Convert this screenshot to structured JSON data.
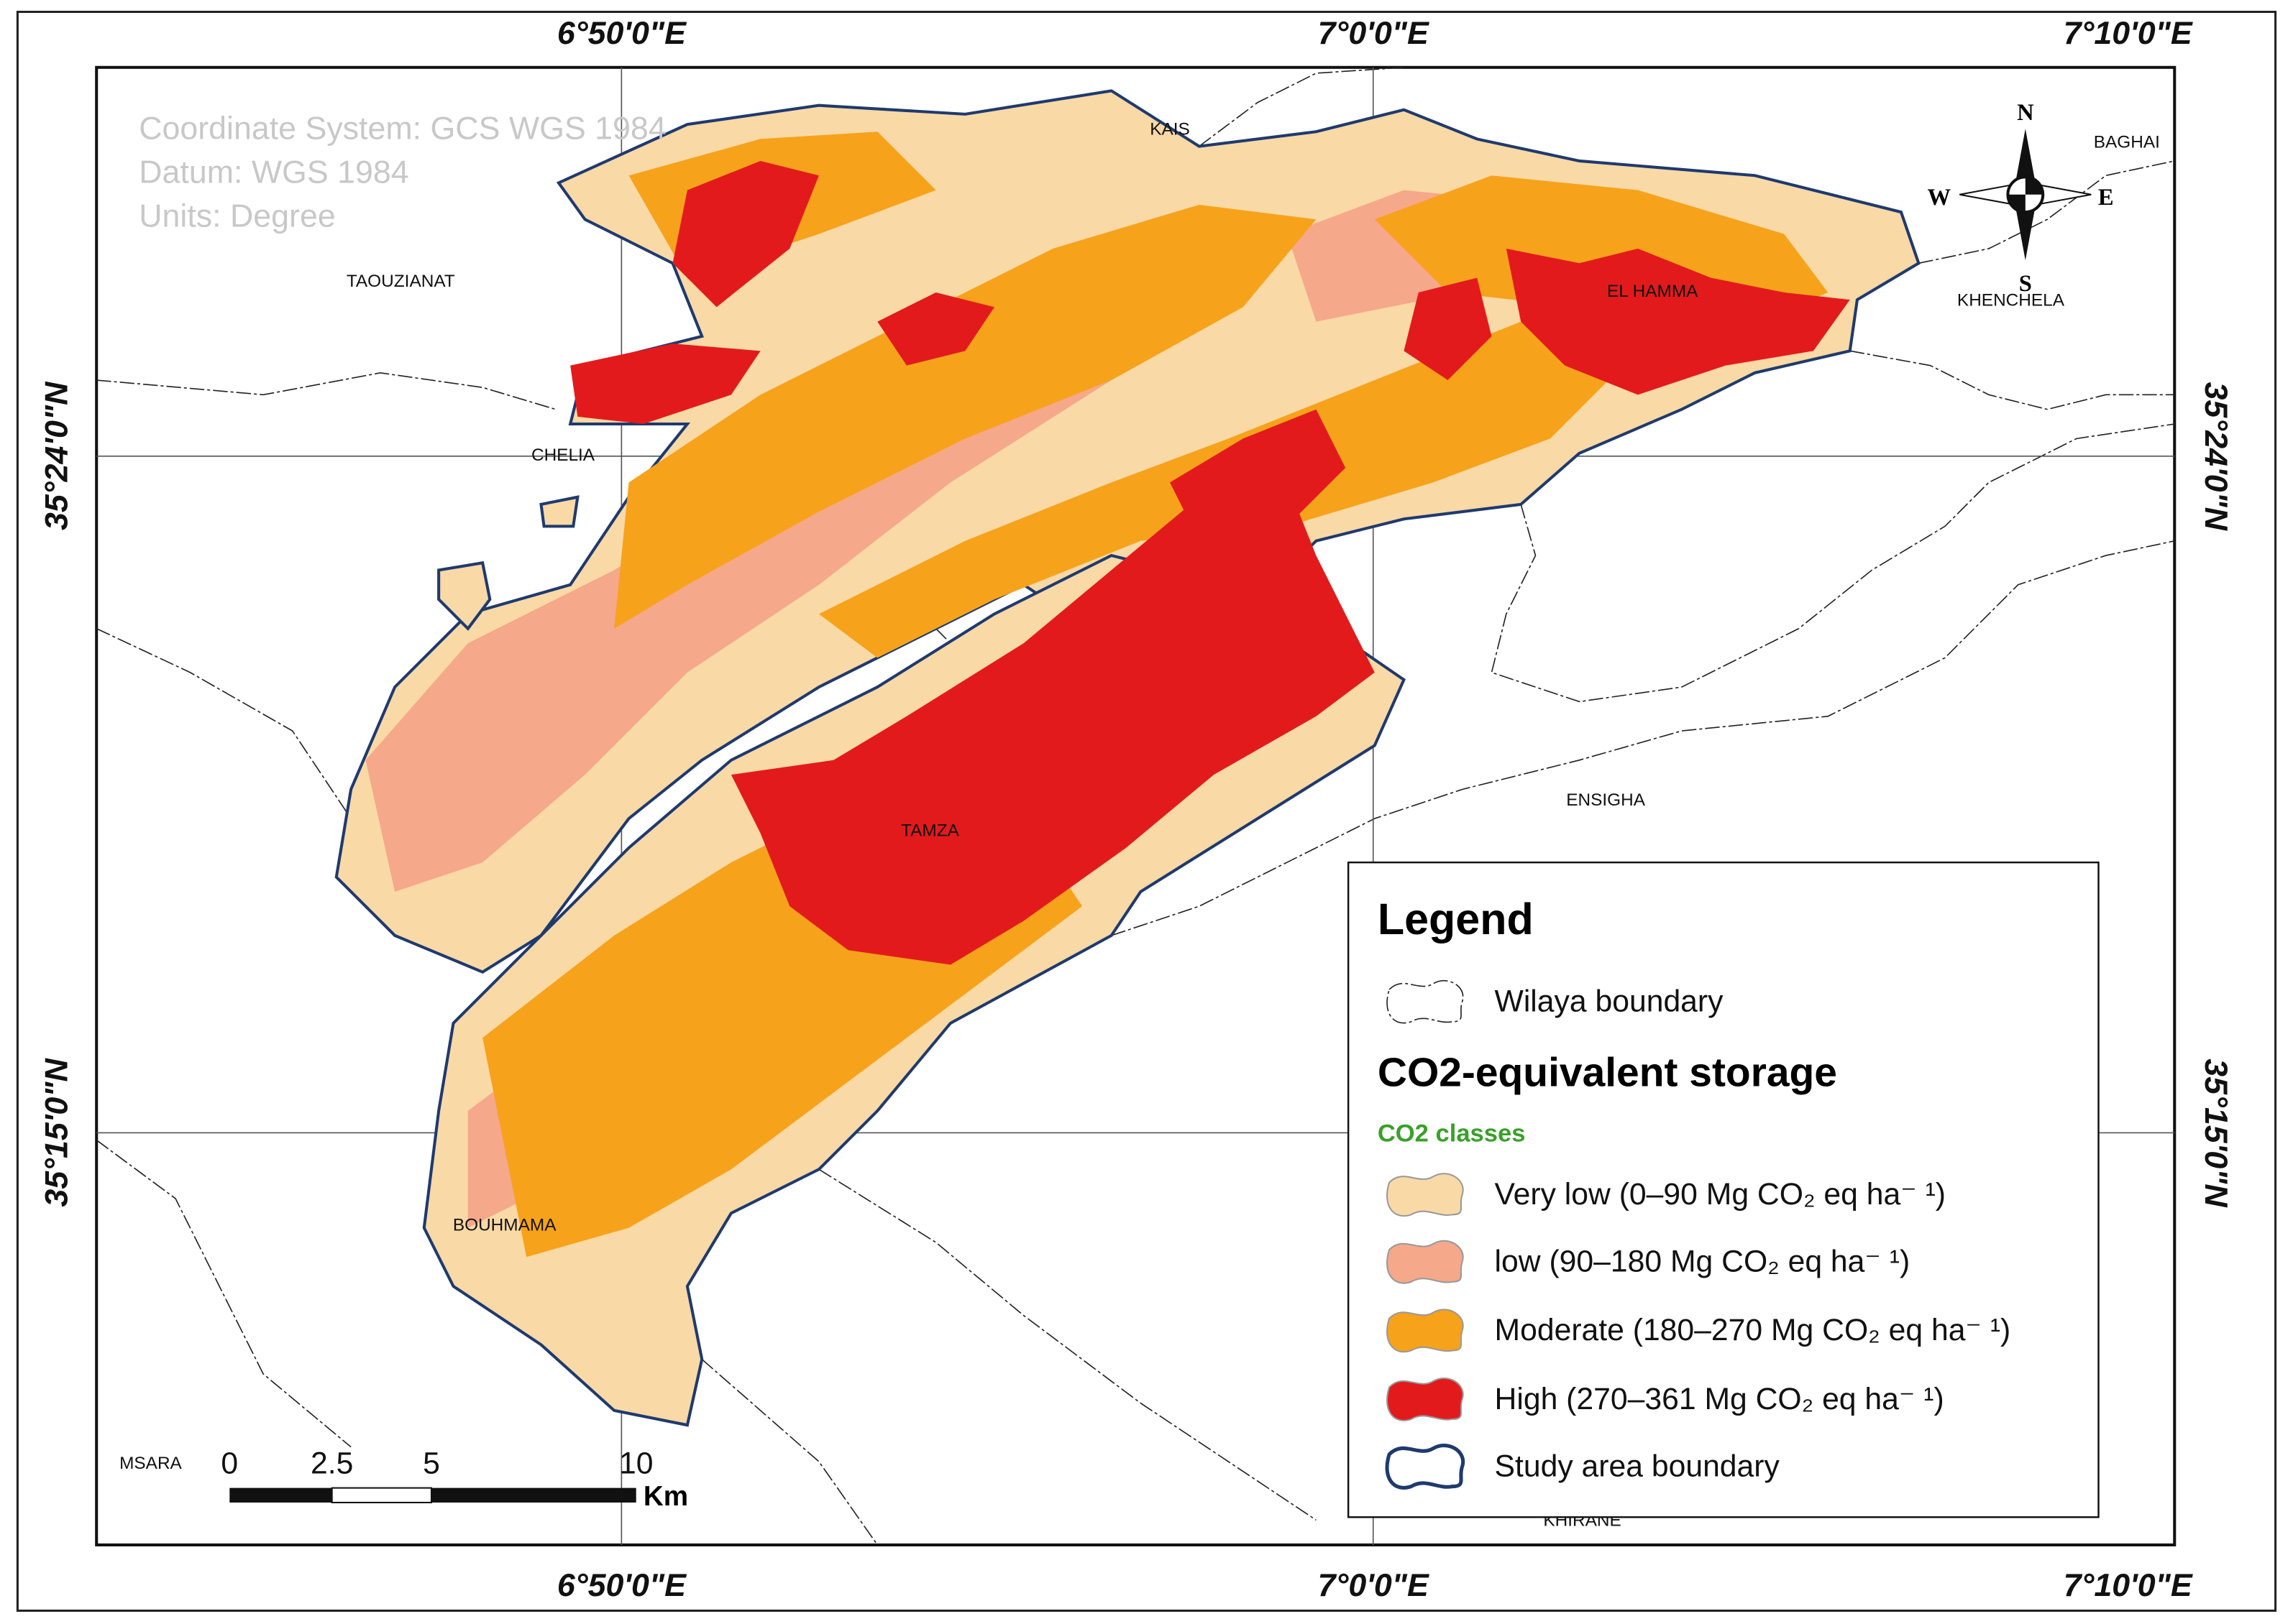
{
  "graticule": {
    "top": [
      "6°50'0\"E",
      "7°0'0\"E",
      "7°10'0\"E"
    ],
    "bottom": [
      "6°50'0\"E",
      "7°0'0\"E",
      "7°10'0\"E"
    ],
    "left": [
      "35°24'0\"N",
      "35°15'0\"N"
    ],
    "right": [
      "35°24'0\"N",
      "35°15'0\"N"
    ]
  },
  "info": [
    "Coordinate System: GCS WGS 1984",
    "Datum: WGS 1984",
    "Units: Degree"
  ],
  "places": [
    "TAOUZIANAT",
    "KAIS",
    "CHELIA",
    "EL HAMMA",
    "KHENCHELA",
    "BAGHAI",
    "ENSIGHA",
    "TAMZA",
    "BOUHMAMA",
    "MSARA",
    "KHIRANE"
  ],
  "compass": {
    "n": "N",
    "s": "S",
    "e": "E",
    "w": "W"
  },
  "scale_bar": {
    "ticks": [
      "0",
      "2.5",
      "5",
      "10"
    ],
    "unit": "Km"
  },
  "legend": {
    "title": "Legend",
    "boundary": "Wilaya boundary",
    "heading": "CO2-equivalent storage",
    "subheading": "CO2 classes",
    "classes": [
      "Very low (0–90 Mg CO₂ eq ha⁻ ¹)",
      "low (90–180 Mg CO₂ eq ha⁻ ¹)",
      "Moderate (180–270 Mg CO₂ eq ha⁻ ¹)",
      "High (270–361 Mg CO₂ eq ha⁻ ¹)"
    ],
    "study_area": "Study area boundary"
  }
}
